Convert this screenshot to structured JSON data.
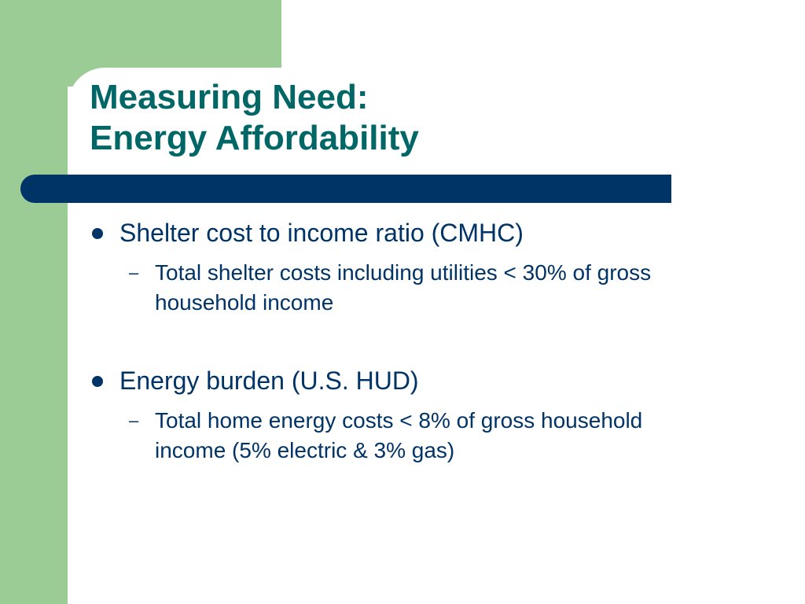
{
  "slide": {
    "title_line1": "Measuring Need:",
    "title_line2": "Energy Affordability",
    "colors": {
      "accent_green": "#9ccc95",
      "title_teal": "#006666",
      "navy": "#003366",
      "background": "#ffffff"
    },
    "bullets": [
      {
        "text": "Shelter cost to income ratio (CMHC)",
        "sub": {
          "marker": "–",
          "text": "Total shelter costs including utilities < 30% of gross household income"
        }
      },
      {
        "text": "Energy burden (U.S. HUD)",
        "sub": {
          "marker": "–",
          "text": "Total home energy costs < 8% of gross household income (5% electric & 3% gas)"
        }
      }
    ]
  }
}
